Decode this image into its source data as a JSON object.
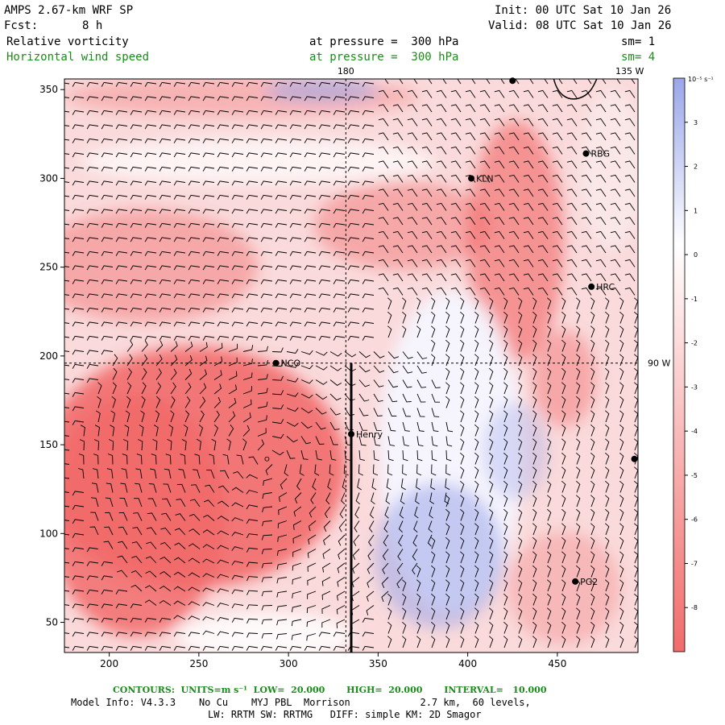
{
  "header": {
    "title": "AMPS 2.67-km WRF SP",
    "init": "Init: 00 UTC Sat 10 Jan 26",
    "fcst_label": "Fcst:",
    "fcst_value": "8 h",
    "valid": "Valid: 08 UTC Sat 10 Jan 26",
    "field1": "Relative vorticity",
    "field1_level": "at pressure =  300 hPa",
    "field1_sm": "sm= 1",
    "field2": "Horizontal wind speed",
    "field2_level": "at pressure =  300 hPa",
    "field2_sm": "sm= 4"
  },
  "footer": {
    "contours": "CONTOURS:  UNITS=m s⁻¹  LOW=  20.000       HIGH=  20.000       INTERVAL=   10.000",
    "model_info": "Model Info: V4.3.3    No Cu    MYJ PBL  Morrison            2.7 km,  60 levels,",
    "model_info2": "LW: RRTM SW: RRTMG   DIFF: simple KM: 2D Smagor"
  },
  "colors": {
    "negative": "#f26b6b",
    "positive": "#9aa6ea",
    "zero": "#ffffff",
    "barb": "#000000",
    "label_green": "#1a8c1a"
  },
  "chart_data": {
    "type": "heatmap",
    "xlim": [
      175,
      495
    ],
    "ylim": [
      33,
      356
    ],
    "x_ticks": [
      200,
      250,
      300,
      350,
      400,
      450
    ],
    "y_ticks": [
      50,
      100,
      150,
      200,
      250,
      300,
      350
    ],
    "grid_lines": [
      {
        "label": "180",
        "orientation": "vertical",
        "at": 332
      },
      {
        "label": "90 W",
        "orientation": "horizontal",
        "at": 196
      }
    ],
    "corner_label": "135 W",
    "colorbar": {
      "unit_label": "10⁻⁵ s⁻¹",
      "ticks": [
        3,
        2,
        1,
        0,
        -1,
        -2,
        -3,
        -4,
        -5,
        -6,
        -7,
        -8
      ],
      "range": [
        4,
        -9
      ]
    },
    "stations": [
      {
        "name": "RBG",
        "x": 466,
        "y": 314
      },
      {
        "name": "KLN",
        "x": 402,
        "y": 300
      },
      {
        "name": "HRC",
        "x": 469,
        "y": 239
      },
      {
        "name": "NCO",
        "x": 293,
        "y": 196
      },
      {
        "name": "Henry",
        "x": 335,
        "y": 156
      },
      {
        "name": "PG2",
        "x": 460,
        "y": 73
      },
      {
        "name": "",
        "x": 425,
        "y": 355
      },
      {
        "name": "",
        "x": 493,
        "y": 142
      }
    ],
    "cross_section_line": {
      "x": 335,
      "y_from": 33,
      "y_to": 196
    },
    "vortex_center": {
      "x": 288,
      "y": 142
    }
  }
}
